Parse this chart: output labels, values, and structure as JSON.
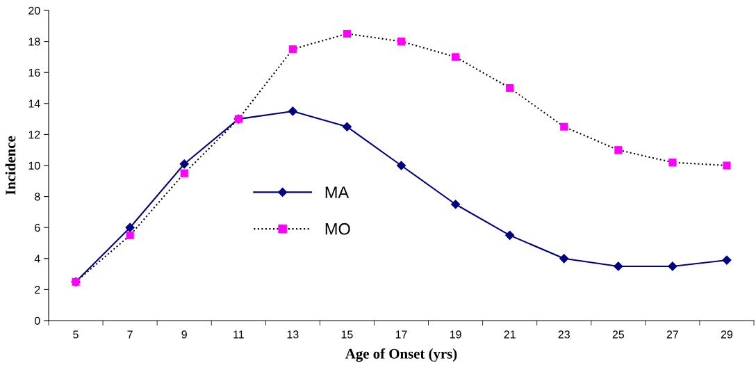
{
  "chart_data": {
    "type": "line",
    "xlabel": "Age of Onset (yrs)",
    "ylabel": "Incidence",
    "categories": [
      "5",
      "7",
      "9",
      "11",
      "13",
      "15",
      "17",
      "19",
      "21",
      "23",
      "25",
      "27",
      "29"
    ],
    "series": [
      {
        "name": "MA",
        "color": "#000080",
        "marker": "diamond",
        "line_style": "solid",
        "values": [
          2.5,
          6.0,
          10.1,
          13.0,
          13.5,
          12.5,
          10.0,
          7.5,
          5.5,
          4.0,
          3.5,
          3.5,
          3.9
        ]
      },
      {
        "name": "MO",
        "color": "#000000",
        "marker": "square",
        "colors": [
          "#ff00ff",
          "#ff00ff",
          "#ff00ff",
          "#ff00ff",
          "#ff00ff",
          "#ff00ff",
          "#ff00ff",
          "#ff00ff",
          "#ff00ff",
          "#ff00ff",
          "#ff00ff",
          "#ff00ff",
          "#ff00ff"
        ],
        "line_style": "dotted",
        "values": [
          2.5,
          5.5,
          9.5,
          13.0,
          17.5,
          18.5,
          18.0,
          17.0,
          15.0,
          12.5,
          11.0,
          10.2,
          10.0
        ]
      }
    ],
    "ylim": [
      0,
      20
    ],
    "yticks": [
      0,
      2,
      4,
      6,
      8,
      10,
      12,
      14,
      16,
      18,
      20
    ],
    "grid": false,
    "legend": "center left"
  }
}
